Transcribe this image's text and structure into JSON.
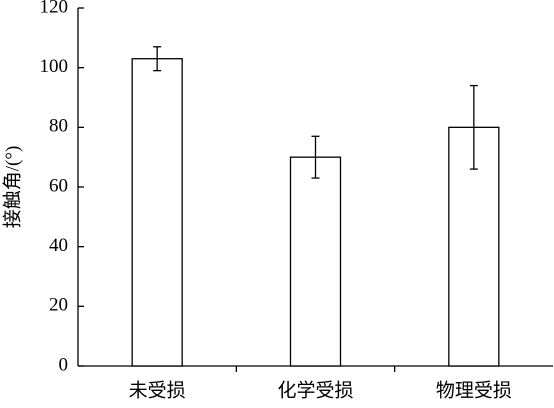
{
  "chart_data": {
    "type": "bar",
    "y_label": "接触角/(°)",
    "categories": [
      "未受损",
      "化学受损",
      "物理受损"
    ],
    "values": [
      103,
      70,
      80
    ],
    "errors": [
      4,
      7,
      14
    ],
    "color": "#ffffff",
    "ylim": [
      0,
      120
    ],
    "yticks": [
      0,
      20,
      40,
      60,
      80,
      100,
      120
    ],
    "grid": false
  }
}
